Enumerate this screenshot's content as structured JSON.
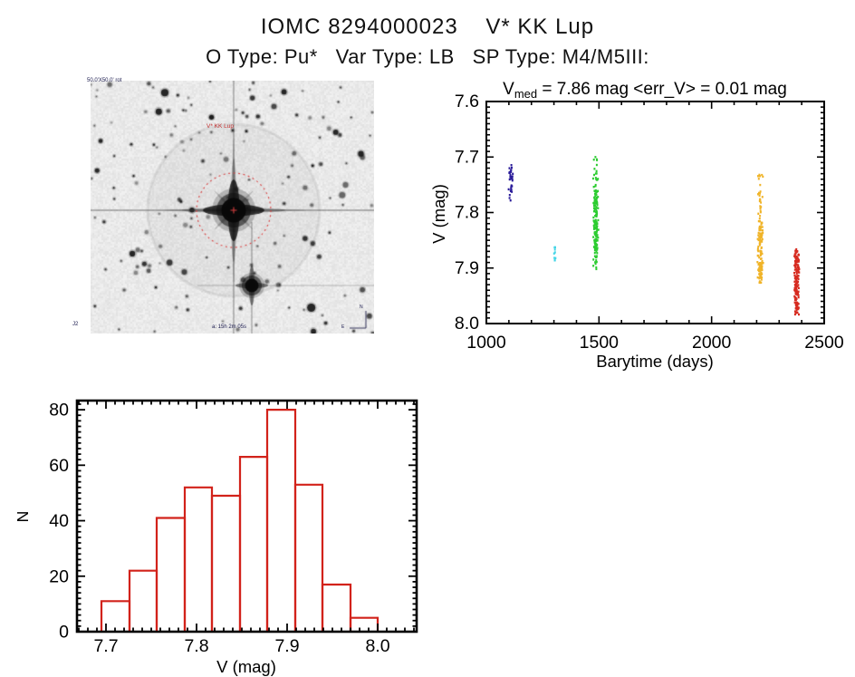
{
  "page": {
    "title": "IOMC 8294000023    V* KK Lup",
    "subtitle": "O Type: Pu*   Var Type: LB   SP Type: M4/M5III:"
  },
  "finder": {
    "label_fov": "50.0'X50.0' rot",
    "label_target": "V* KK Lup",
    "label_coords": "a: 15h 2m 05s",
    "label_corner": "J2",
    "compass_n": "N",
    "compass_e": "E",
    "annotation_color": "#c43030"
  },
  "chart_data": [
    {
      "type": "scatter",
      "name": "light-curve",
      "title": "V_med = 7.86 mag <err_V> = 0.01 mag",
      "title_parts": {
        "pre": "V",
        "sub": "med",
        "post": " = 7.86 mag <err_V> = 0.01 mag"
      },
      "xlabel": "Barytime (days)",
      "ylabel": "V (mag)",
      "xlim": [
        1000,
        2500
      ],
      "ylim": [
        7.6,
        8.0
      ],
      "y_inverted_downward": true,
      "xticks": [
        1000,
        1500,
        2000,
        2500
      ],
      "xtick_labels": [
        "1000",
        "1500",
        "2000",
        "2500"
      ],
      "yticks": [
        7.6,
        7.7,
        7.8,
        7.9,
        8.0
      ],
      "ytick_labels": [
        "7.6",
        "7.7",
        "7.8",
        "7.9",
        "8.0"
      ],
      "x_minor_step": 100,
      "y_minor_step": 0.01,
      "grid": false,
      "clusters": [
        {
          "name": "epoch-1",
          "color": "#2b1d9a",
          "x_range": [
            1098,
            1118
          ],
          "segments": [
            [
              7.714,
              7.744,
              22
            ],
            [
              7.748,
              7.78,
              12
            ]
          ]
        },
        {
          "name": "epoch-2",
          "color": "#45d5e6",
          "x_range": [
            1300,
            1308
          ],
          "segments": [
            [
              7.861,
              7.876,
              5
            ],
            [
              7.88,
              7.891,
              4
            ]
          ]
        },
        {
          "name": "epoch-3",
          "color": "#2ccc30",
          "x_range": [
            1474,
            1498
          ],
          "segments": [
            [
              7.7,
              7.768,
              30
            ],
            [
              7.768,
              7.866,
              128
            ],
            [
              7.866,
              7.903,
              17
            ]
          ]
        },
        {
          "name": "epoch-4",
          "color": "#f0b429",
          "x_range": [
            2202,
            2230
          ],
          "segments": [
            [
              7.732,
              7.825,
              32
            ],
            [
              7.825,
              7.928,
              122
            ]
          ]
        },
        {
          "name": "epoch-5",
          "color": "#d62b20",
          "x_range": [
            2366,
            2390
          ],
          "segments": [
            [
              7.866,
              7.879,
              12
            ],
            [
              7.879,
              7.972,
              138
            ],
            [
              7.972,
              7.984,
              10
            ]
          ]
        }
      ]
    },
    {
      "type": "bar",
      "name": "magnitude-histogram",
      "xlabel": "V (mag)",
      "ylabel": "N",
      "bin_edges": [
        7.695,
        7.726,
        7.756,
        7.787,
        7.817,
        7.848,
        7.878,
        7.909,
        7.939,
        7.97,
        8.0
      ],
      "counts": [
        11,
        22,
        41,
        52,
        49,
        63,
        80,
        53,
        17,
        5
      ],
      "xticks": [
        7.7,
        7.8,
        7.9,
        8.0
      ],
      "xtick_labels": [
        "7.7",
        "7.8",
        "7.9",
        "8.0"
      ],
      "yticks": [
        0,
        20,
        40,
        60,
        80
      ],
      "ytick_labels": [
        "0",
        "20",
        "40",
        "60",
        "80"
      ],
      "x_minor_step": 0.01,
      "y_minor_step": 2,
      "xlim": [
        7.668,
        8.043
      ],
      "ylim": [
        0,
        83.3
      ],
      "grid": false,
      "bar_color": "#d2221a"
    }
  ]
}
